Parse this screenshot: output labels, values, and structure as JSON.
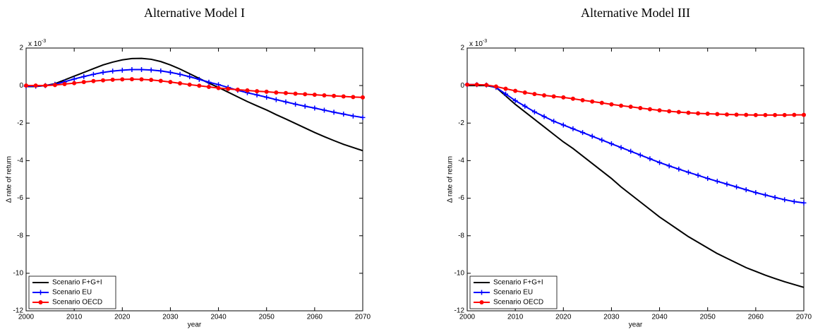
{
  "chart_data": [
    {
      "type": "line",
      "title": "Alternative Model I",
      "xlabel": "year",
      "ylabel": "Δ rate of return",
      "y_multiplier": {
        "base": "x 10",
        "exponent": "-3"
      },
      "xlim": [
        2000,
        2070
      ],
      "xticks": [
        2000,
        2010,
        2020,
        2030,
        2040,
        2050,
        2060,
        2070
      ],
      "ylim": [
        -12,
        2
      ],
      "yticks": [
        -12,
        -10,
        -8,
        -6,
        -4,
        -2,
        0,
        2
      ],
      "legend": "lower left",
      "x": [
        2000,
        2002,
        2004,
        2006,
        2008,
        2010,
        2012,
        2014,
        2016,
        2018,
        2020,
        2022,
        2024,
        2026,
        2028,
        2030,
        2032,
        2034,
        2036,
        2038,
        2040,
        2042,
        2044,
        2046,
        2048,
        2050,
        2052,
        2054,
        2056,
        2058,
        2060,
        2062,
        2064,
        2066,
        2068,
        2070
      ],
      "series": [
        {
          "name": "Scenario F+G+I",
          "color": "#000000",
          "marker": "none",
          "values": [
            -0.05,
            -0.05,
            0,
            0.1,
            0.3,
            0.5,
            0.7,
            0.9,
            1.1,
            1.25,
            1.37,
            1.44,
            1.45,
            1.4,
            1.28,
            1.1,
            0.88,
            0.63,
            0.38,
            0.13,
            -0.1,
            -0.35,
            -0.6,
            -0.85,
            -1.08,
            -1.3,
            -1.55,
            -1.78,
            -2.02,
            -2.26,
            -2.5,
            -2.72,
            -2.93,
            -3.13,
            -3.3,
            -3.47
          ]
        },
        {
          "name": "Scenario EU",
          "color": "#0000ff",
          "marker": "plus",
          "values": [
            -0.03,
            -0.03,
            0,
            0.07,
            0.2,
            0.35,
            0.48,
            0.6,
            0.7,
            0.77,
            0.82,
            0.85,
            0.85,
            0.83,
            0.78,
            0.7,
            0.6,
            0.47,
            0.33,
            0.18,
            0.05,
            -0.1,
            -0.25,
            -0.38,
            -0.5,
            -0.62,
            -0.75,
            -0.87,
            -0.99,
            -1.1,
            -1.2,
            -1.31,
            -1.42,
            -1.52,
            -1.62,
            -1.7
          ]
        },
        {
          "name": "Scenario OECD",
          "color": "#ff0000",
          "marker": "dot",
          "values": [
            0,
            0,
            0,
            0.03,
            0.08,
            0.13,
            0.19,
            0.24,
            0.28,
            0.31,
            0.33,
            0.34,
            0.33,
            0.3,
            0.25,
            0.19,
            0.12,
            0.05,
            -0.01,
            -0.07,
            -0.13,
            -0.18,
            -0.22,
            -0.26,
            -0.3,
            -0.33,
            -0.37,
            -0.4,
            -0.43,
            -0.46,
            -0.49,
            -0.52,
            -0.55,
            -0.58,
            -0.61,
            -0.63
          ]
        }
      ]
    },
    {
      "type": "line",
      "title": "Alternative Model III",
      "xlabel": "year",
      "ylabel": "Δ rate of return",
      "y_multiplier": {
        "base": "x 10",
        "exponent": "-3"
      },
      "xlim": [
        2000,
        2070
      ],
      "xticks": [
        2000,
        2010,
        2020,
        2030,
        2040,
        2050,
        2060,
        2070
      ],
      "ylim": [
        -12,
        2
      ],
      "yticks": [
        -12,
        -10,
        -8,
        -6,
        -4,
        -2,
        0,
        2
      ],
      "legend": "lower left",
      "x": [
        2000,
        2002,
        2004,
        2006,
        2008,
        2010,
        2012,
        2014,
        2016,
        2018,
        2020,
        2022,
        2024,
        2026,
        2028,
        2030,
        2032,
        2034,
        2036,
        2038,
        2040,
        2042,
        2044,
        2046,
        2048,
        2050,
        2052,
        2054,
        2056,
        2058,
        2060,
        2062,
        2064,
        2066,
        2068,
        2070
      ],
      "series": [
        {
          "name": "Scenario F+G+I",
          "color": "#000000",
          "marker": "none",
          "values": [
            0,
            0,
            0,
            -0.1,
            -0.55,
            -1.0,
            -1.4,
            -1.8,
            -2.2,
            -2.6,
            -3.0,
            -3.35,
            -3.75,
            -4.15,
            -4.55,
            -4.95,
            -5.4,
            -5.8,
            -6.2,
            -6.6,
            -7.0,
            -7.35,
            -7.7,
            -8.05,
            -8.35,
            -8.65,
            -8.95,
            -9.2,
            -9.45,
            -9.7,
            -9.9,
            -10.1,
            -10.28,
            -10.45,
            -10.6,
            -10.75
          ]
        },
        {
          "name": "Scenario EU",
          "color": "#0000ff",
          "marker": "plus",
          "values": [
            0.05,
            0.05,
            0.03,
            -0.1,
            -0.45,
            -0.8,
            -1.1,
            -1.4,
            -1.65,
            -1.9,
            -2.1,
            -2.3,
            -2.5,
            -2.7,
            -2.9,
            -3.1,
            -3.3,
            -3.5,
            -3.7,
            -3.9,
            -4.1,
            -4.28,
            -4.45,
            -4.62,
            -4.78,
            -4.95,
            -5.1,
            -5.25,
            -5.4,
            -5.55,
            -5.7,
            -5.83,
            -5.96,
            -6.08,
            -6.18,
            -6.25
          ]
        },
        {
          "name": "Scenario OECD",
          "color": "#ff0000",
          "marker": "dot",
          "values": [
            0.05,
            0.05,
            0.03,
            -0.05,
            -0.17,
            -0.28,
            -0.37,
            -0.45,
            -0.52,
            -0.58,
            -0.63,
            -0.7,
            -0.78,
            -0.85,
            -0.92,
            -1.0,
            -1.07,
            -1.13,
            -1.2,
            -1.26,
            -1.32,
            -1.37,
            -1.41,
            -1.45,
            -1.48,
            -1.5,
            -1.52,
            -1.54,
            -1.55,
            -1.56,
            -1.57,
            -1.57,
            -1.57,
            -1.57,
            -1.56,
            -1.56
          ]
        }
      ]
    }
  ]
}
